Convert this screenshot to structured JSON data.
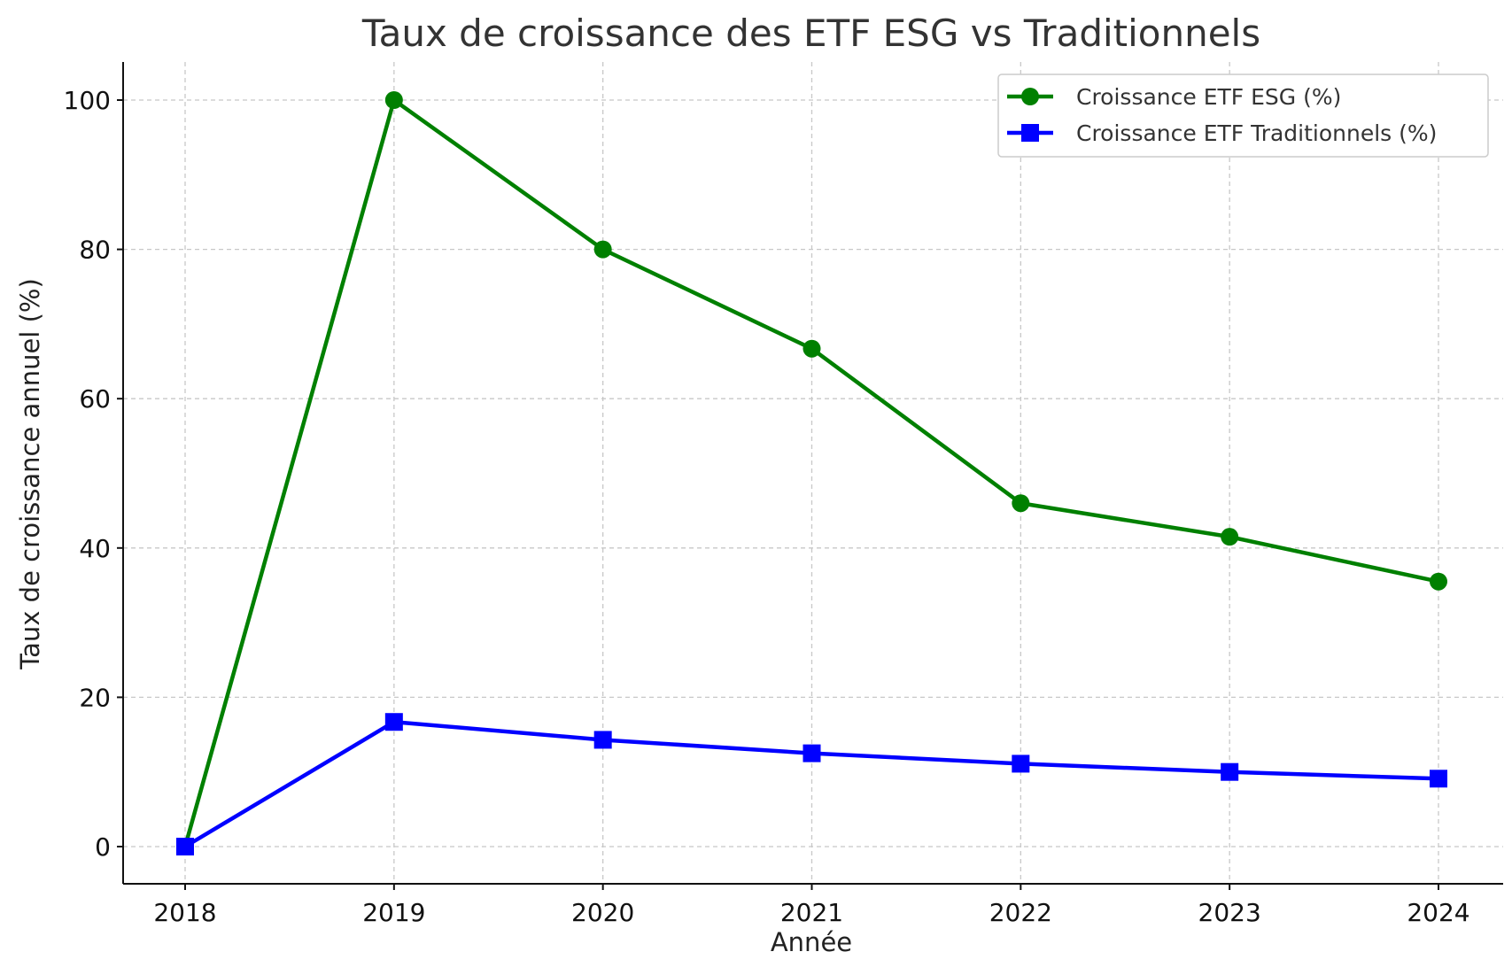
{
  "chart_data": {
    "type": "line",
    "title": "Taux de croissance des ETF ESG vs Traditionnels",
    "xlabel": "Année",
    "ylabel": "Taux de croissance annuel (%)",
    "x": [
      "2018",
      "2019",
      "2020",
      "2021",
      "2022",
      "2023",
      "2024"
    ],
    "y_ticks": [
      0,
      20,
      40,
      60,
      80,
      100
    ],
    "ylim": [
      -5,
      105
    ],
    "grid": true,
    "legend_position": "top-right",
    "series": [
      {
        "name": "Croissance ETF ESG (%)",
        "color": "#008000",
        "marker": "circle",
        "values": [
          0,
          100,
          80,
          66.7,
          46,
          41.5,
          35.5
        ]
      },
      {
        "name": "Croissance ETF Traditionnels (%)",
        "color": "#0000ff",
        "marker": "square",
        "values": [
          0,
          16.7,
          14.3,
          12.5,
          11.1,
          10,
          9.1
        ]
      }
    ]
  }
}
